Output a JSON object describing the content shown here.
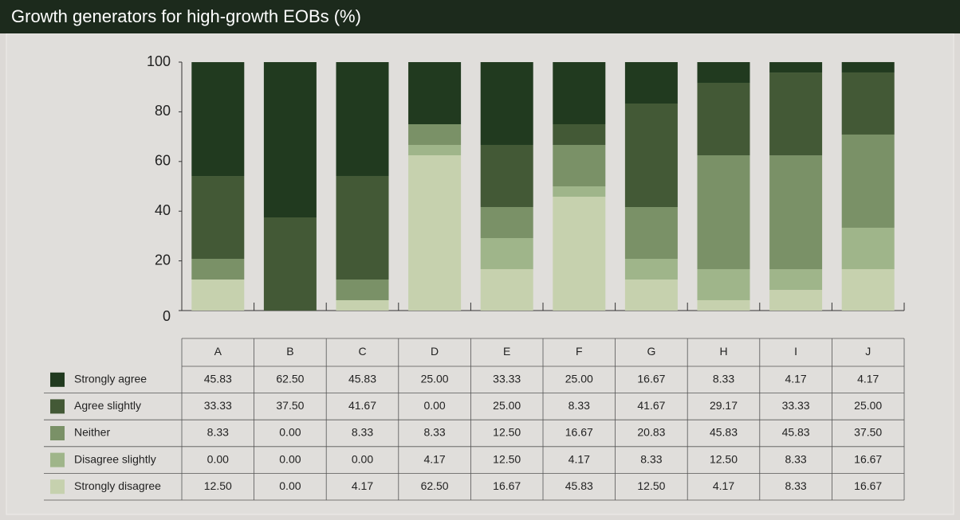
{
  "chart_data": {
    "type": "stacked-bar",
    "title": "Growth generators for high-growth EOBs (%)",
    "categories": [
      "A",
      "B",
      "C",
      "D",
      "E",
      "F",
      "G",
      "H",
      "I",
      "J"
    ],
    "ylim": [
      0,
      100
    ],
    "yticks": [
      0,
      20,
      40,
      60,
      80,
      100
    ],
    "series": [
      {
        "name": "Strongly agree",
        "color": "#213a1f",
        "values": [
          45.83,
          62.5,
          45.83,
          25,
          33.33,
          25,
          16.67,
          8.33,
          4.17,
          4.17
        ],
        "value_labels": [
          "45.83",
          "62.50",
          "45.83",
          "25.00",
          "33.33",
          "25.00",
          "16.67",
          "8.33",
          "4.17",
          "4.17"
        ]
      },
      {
        "name": "Agree slightly",
        "color": "#435936",
        "values": [
          33.33,
          37.5,
          41.67,
          0,
          25,
          8.33,
          41.67,
          29.17,
          33.33,
          25
        ],
        "value_labels": [
          "33.33",
          "37.50",
          "41.67",
          "0.00",
          "25.00",
          "8.33",
          "41.67",
          "29.17",
          "33.33",
          "25.00"
        ]
      },
      {
        "name": "Neither",
        "color": "#7a9167",
        "values": [
          8.33,
          0,
          8.33,
          8.33,
          12.5,
          16.67,
          20.83,
          45.83,
          45.83,
          37.5
        ],
        "value_labels": [
          "8.33",
          "0.00",
          "8.33",
          "8.33",
          "12.50",
          "16.67",
          "20.83",
          "45.83",
          "45.83",
          "37.50"
        ]
      },
      {
        "name": "Disagree slightly",
        "color": "#9fb58a",
        "values": [
          0,
          0,
          0,
          4.17,
          12.5,
          4.17,
          8.33,
          12.5,
          8.33,
          16.67
        ],
        "value_labels": [
          "0.00",
          "0.00",
          "0.00",
          "4.17",
          "12.50",
          "4.17",
          "8.33",
          "12.50",
          "8.33",
          "16.67"
        ]
      },
      {
        "name": "Strongly disagree",
        "color": "#c6d1ae",
        "values": [
          12.5,
          0,
          4.17,
          62.5,
          16.67,
          45.83,
          12.5,
          4.17,
          8.33,
          16.67
        ],
        "value_labels": [
          "12.50",
          "0.00",
          "4.17",
          "62.50",
          "16.67",
          "45.83",
          "12.50",
          "4.17",
          "8.33",
          "16.67"
        ]
      }
    ]
  }
}
